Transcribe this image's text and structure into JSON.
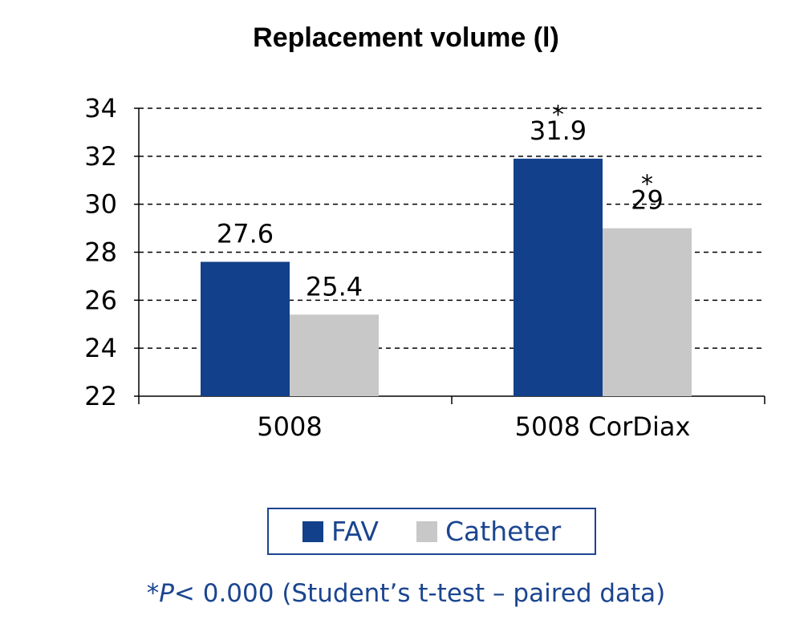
{
  "chart_data": {
    "type": "bar",
    "title": "Replacement volume (l)",
    "categories": [
      "5008",
      "5008 CorDiax"
    ],
    "series": [
      {
        "name": "FAV",
        "values": [
          27.6,
          31.9
        ],
        "color": "#12408a",
        "labels": [
          "27.6",
          "31.9"
        ],
        "significance": [
          "",
          "*"
        ]
      },
      {
        "name": "Catheter",
        "values": [
          25.4,
          29.0
        ],
        "color": "#c8c8c8",
        "labels": [
          "25.4",
          "29"
        ],
        "significance": [
          "",
          "*"
        ]
      }
    ],
    "ylim": [
      22,
      34
    ],
    "yticks": [
      "22",
      "24",
      "26",
      "28",
      "30",
      "32",
      "34"
    ],
    "grid": true,
    "legend_position": "bottom"
  },
  "footnote": {
    "star": "*",
    "p": "P",
    "text": "< 0.000  (Student’s t-test – paired data)"
  }
}
